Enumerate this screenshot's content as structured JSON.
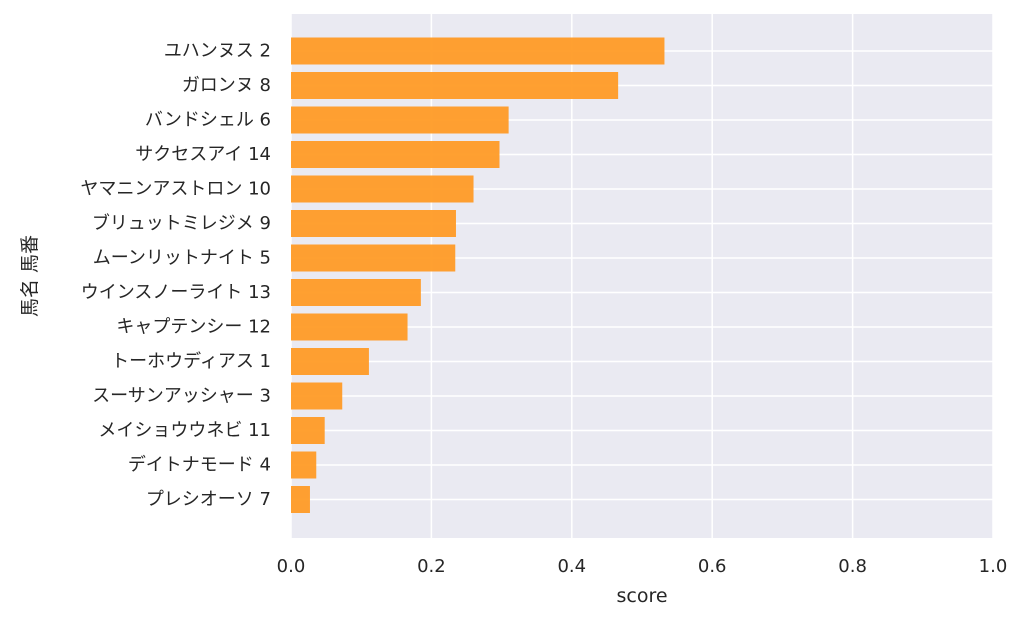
{
  "chart_data": {
    "type": "bar",
    "orientation": "horizontal",
    "title": "",
    "xlabel": "score",
    "ylabel": "馬名 馬番",
    "xlim": [
      0.0,
      1.0
    ],
    "xticks": [
      "0.0",
      "0.2",
      "0.4",
      "0.6",
      "0.8",
      "1.0"
    ],
    "categories": [
      "ユハンヌス 2",
      "ガロンヌ 8",
      "バンドシェル 6",
      "サクセスアイ 14",
      "ヤマニンアストロン 10",
      "ブリュットミレジメ 9",
      "ムーンリットナイト 5",
      "ウインスノーライト 13",
      "キャプテンシー 12",
      "トーホウディアス 1",
      "スーサンアッシャー 3",
      "メイショウウネビ 11",
      "デイトナモード 4",
      "プレシオーソ 7"
    ],
    "values": [
      0.532,
      0.466,
      0.31,
      0.297,
      0.26,
      0.235,
      0.234,
      0.185,
      0.166,
      0.111,
      0.073,
      0.048,
      0.036,
      0.027
    ],
    "grid": true,
    "colors": {
      "bar": "#ff9b26",
      "plot_background": "#eaeaf2",
      "grid": "#ffffff",
      "text": "#262626"
    }
  }
}
